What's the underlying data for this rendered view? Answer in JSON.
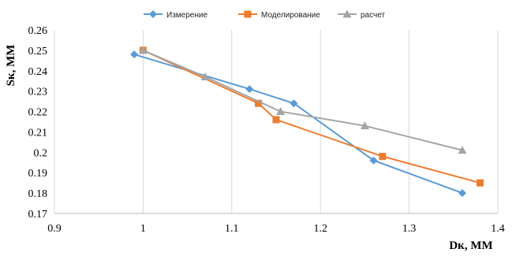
{
  "chart_data": {
    "type": "line",
    "title": "",
    "xlabel": "Dк, ММ",
    "ylabel": "Sк, ММ",
    "xlim": [
      0.9,
      1.4
    ],
    "ylim": [
      0.17,
      0.26
    ],
    "x_ticks": [
      "0.9",
      "1",
      "1.1",
      "1.2",
      "1.3",
      "1.4"
    ],
    "y_ticks": [
      "0.17",
      "0.18",
      "0.19",
      "0.2",
      "0.21",
      "0.22",
      "0.23",
      "0.24",
      "0.25",
      "0.26"
    ],
    "grid": "vertical",
    "legend_position": "top",
    "series": [
      {
        "name": "Измерение",
        "color": "#5B9BD5",
        "marker": "diamond",
        "points": [
          [
            0.99,
            0.248
          ],
          [
            1.12,
            0.231
          ],
          [
            1.17,
            0.224
          ],
          [
            1.26,
            0.196
          ],
          [
            1.36,
            0.18
          ]
        ]
      },
      {
        "name": "Моделирование",
        "color": "#ED7D31",
        "marker": "square",
        "points": [
          [
            1.0,
            0.25
          ],
          [
            1.13,
            0.224
          ],
          [
            1.15,
            0.216
          ],
          [
            1.27,
            0.198
          ],
          [
            1.38,
            0.185
          ]
        ]
      },
      {
        "name": "расчет",
        "color": "#A5A5A5",
        "marker": "triangle",
        "points": [
          [
            1.0,
            0.25
          ],
          [
            1.07,
            0.237
          ],
          [
            1.155,
            0.22
          ],
          [
            1.25,
            0.213
          ],
          [
            1.36,
            0.201
          ]
        ]
      }
    ]
  }
}
